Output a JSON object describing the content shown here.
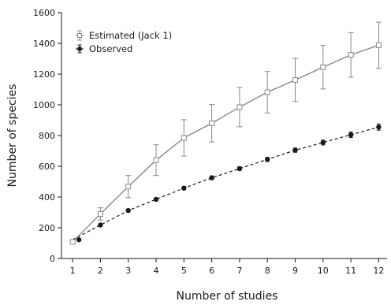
{
  "chart_data": {
    "type": "line",
    "title": "",
    "xlabel": "Number of studies",
    "ylabel": "Number of species",
    "x": [
      1,
      2,
      3,
      4,
      5,
      6,
      7,
      8,
      9,
      10,
      11,
      12
    ],
    "xlim": [
      0.6,
      12.3
    ],
    "ylim": [
      0,
      1600
    ],
    "yticks": [
      0,
      200,
      400,
      600,
      800,
      1000,
      1200,
      1400,
      1600
    ],
    "grid": false,
    "legend_position": "top-left",
    "series": [
      {
        "name": "Estimated (Jack 1)",
        "style": "solid line, hollow square markers, error bars",
        "color": "#888888",
        "values": [
          108,
          290,
          468,
          640,
          785,
          880,
          985,
          1082,
          1162,
          1245,
          1325,
          1388
        ],
        "error": [
          0,
          40,
          72,
          100,
          118,
          122,
          128,
          135,
          140,
          142,
          145,
          150
        ]
      },
      {
        "name": "Observed",
        "style": "dashed line, filled circle markers",
        "color": "#1a1a1a",
        "values": [
          122,
          218,
          312,
          385,
          458,
          525,
          585,
          645,
          705,
          755,
          805,
          855
        ],
        "error": [
          0,
          8,
          10,
          10,
          10,
          12,
          12,
          14,
          14,
          16,
          18,
          20
        ]
      }
    ]
  }
}
